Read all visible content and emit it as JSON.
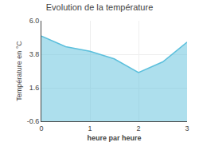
{
  "chart_data": {
    "type": "area",
    "title": "Evolution de la température",
    "xlabel": "heure par heure",
    "ylabel": "Température en °C",
    "x": [
      0,
      0.5,
      1,
      1.5,
      2,
      2.5,
      3
    ],
    "values": [
      5.0,
      4.3,
      4.0,
      3.5,
      2.6,
      3.3,
      4.6
    ],
    "color": "#5bbfdc",
    "xlim": [
      0,
      3
    ],
    "ylim": [
      -0.6,
      6.0
    ],
    "xticks": [
      0,
      1,
      2,
      3
    ],
    "yticks": [
      -0.6,
      1.6,
      3.8,
      {
        "value": 6.0,
        "label": "6.0"
      }
    ],
    "grid": true
  }
}
